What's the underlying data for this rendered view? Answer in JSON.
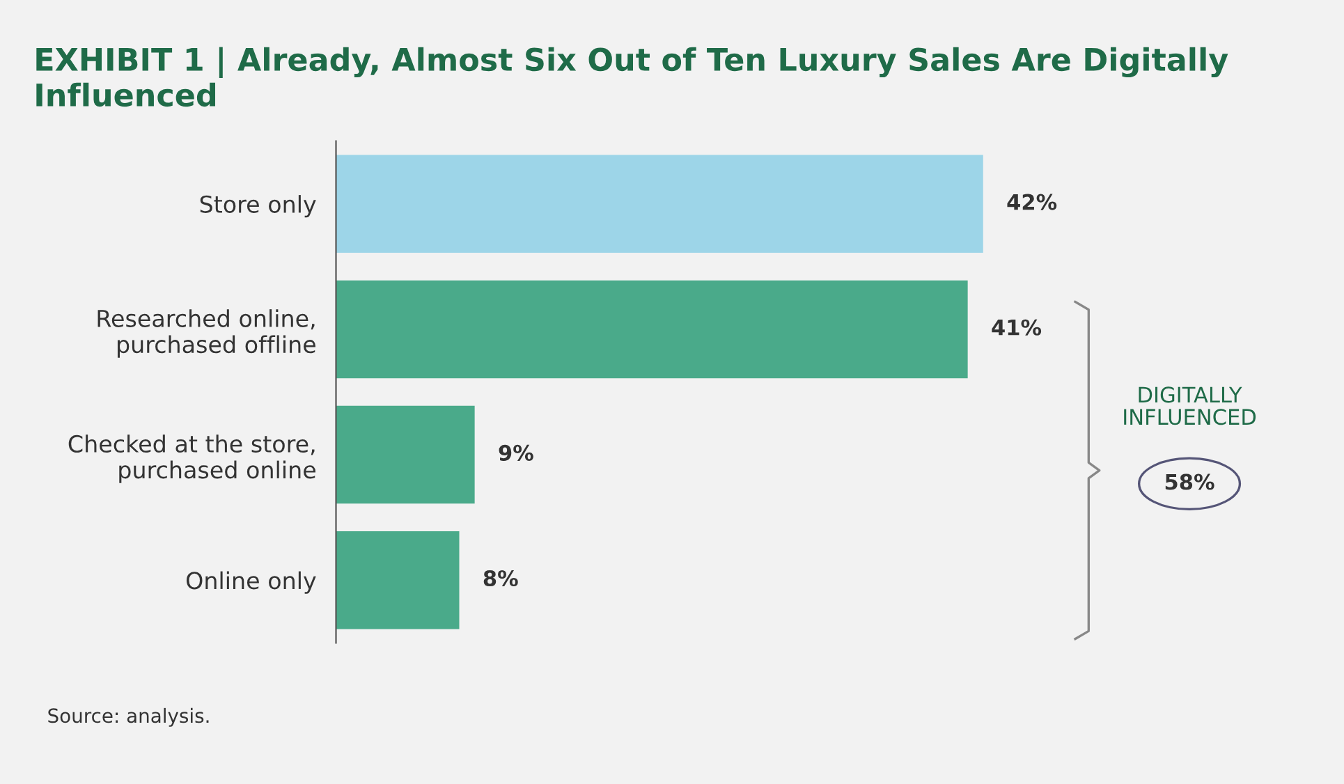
{
  "chart_data": {
    "type": "bar",
    "orientation": "horizontal",
    "title": "EXHIBIT 1 | Already, Almost Six Out of Ten Luxury Sales Are Digitally Influenced",
    "categories": [
      "Store only",
      "Researched online,\npurchased offline",
      "Checked at the store,\npurchased online",
      "Online only"
    ],
    "values": [
      42,
      41,
      9,
      8
    ],
    "colors": [
      "#9dd5e8",
      "#4aaa8a",
      "#4aaa8a",
      "#4aaa8a"
    ],
    "value_labels": [
      "42%",
      "41%",
      "9%",
      "8%"
    ],
    "annotations": [
      "DIGITALLY\nINFLUENCED",
      "58%",
      "Source: analysis."
    ],
    "grid": false,
    "legend": false
  }
}
